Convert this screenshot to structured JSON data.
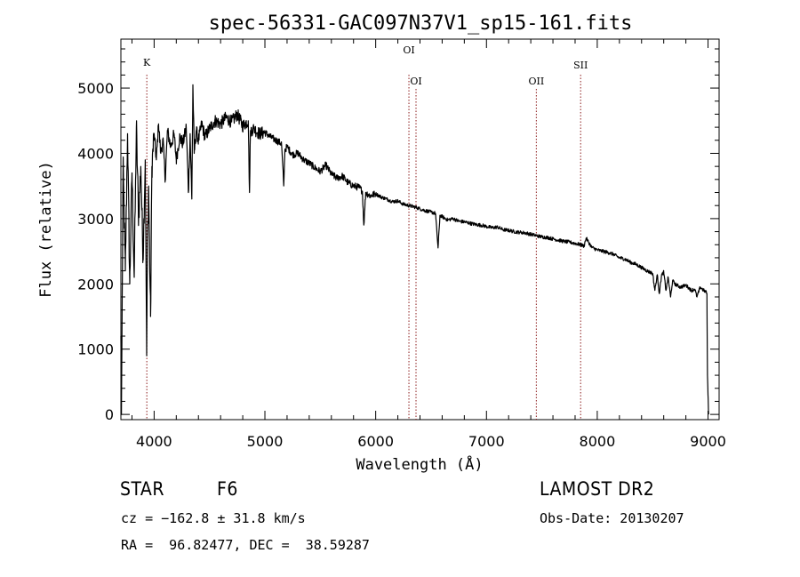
{
  "chart_data": {
    "type": "line",
    "title": "spec-56331-GAC097N37V1_sp15-161.fits",
    "xlabel": "Wavelength (Å)",
    "ylabel": "Flux (relative)",
    "xlim": [
      3700,
      9100
    ],
    "ylim": [
      -80,
      5750
    ],
    "x_ticks": [
      4000,
      5000,
      6000,
      7000,
      8000,
      9000
    ],
    "y_ticks": [
      0,
      1000,
      2000,
      3000,
      4000,
      5000
    ],
    "grid": false,
    "series": [
      {
        "x": [
          3700,
          3705,
          3720,
          3740,
          3760,
          3780,
          3800,
          3820,
          3840,
          3860,
          3880,
          3900,
          3920,
          3933,
          3940,
          3950,
          3968,
          3980,
          4000,
          4020,
          4040,
          4060,
          4080,
          4101,
          4120,
          4150,
          4180,
          4200,
          4230,
          4260,
          4290,
          4310,
          4325,
          4340,
          4350,
          4362,
          4380,
          4400,
          4430,
          4460,
          4500,
          4550,
          4600,
          4650,
          4700,
          4750,
          4800,
          4850,
          4861,
          4870,
          4900,
          4950,
          5000,
          5050,
          5100,
          5150,
          5170,
          5180,
          5200,
          5250,
          5300,
          5350,
          5400,
          5450,
          5500,
          5550,
          5600,
          5650,
          5700,
          5750,
          5800,
          5850,
          5880,
          5893,
          5910,
          5950,
          6000,
          6050,
          6100,
          6150,
          6200,
          6250,
          6300,
          6350,
          6400,
          6450,
          6500,
          6540,
          6563,
          6580,
          6600,
          6650,
          6700,
          6750,
          6800,
          6850,
          6900,
          6950,
          7000,
          7050,
          7100,
          7150,
          7200,
          7250,
          7300,
          7350,
          7400,
          7450,
          7500,
          7550,
          7600,
          7650,
          7700,
          7750,
          7800,
          7850,
          7880,
          7900,
          7950,
          8000,
          8050,
          8100,
          8150,
          8200,
          8250,
          8300,
          8350,
          8400,
          8450,
          8500,
          8520,
          8542,
          8560,
          8580,
          8600,
          8620,
          8640,
          8662,
          8680,
          8700,
          8750,
          8800,
          8850,
          8880,
          8900,
          8930,
          8960,
          8980,
          8990,
          8995,
          9000,
          9005
        ],
        "y": [
          1200,
          0,
          3800,
          2200,
          4300,
          2000,
          3700,
          2100,
          4400,
          3000,
          3800,
          2400,
          3900,
          900,
          2600,
          3500,
          1500,
          3800,
          4300,
          3900,
          4450,
          4000,
          4200,
          3600,
          4350,
          4100,
          4300,
          3900,
          4250,
          4150,
          4400,
          3400,
          4300,
          3300,
          5050,
          4000,
          4350,
          4200,
          4450,
          4250,
          4380,
          4500,
          4450,
          4550,
          4480,
          4600,
          4420,
          4500,
          3400,
          4350,
          4380,
          4300,
          4320,
          4250,
          4200,
          4150,
          3500,
          4050,
          4100,
          3980,
          4000,
          3900,
          3850,
          3780,
          3720,
          3820,
          3680,
          3620,
          3650,
          3550,
          3500,
          3480,
          3420,
          2900,
          3400,
          3350,
          3380,
          3330,
          3300,
          3260,
          3270,
          3220,
          3200,
          3180,
          3150,
          3120,
          3100,
          3080,
          2550,
          3050,
          3030,
          2980,
          3000,
          2960,
          2950,
          2930,
          2910,
          2900,
          2880,
          2860,
          2870,
          2830,
          2820,
          2800,
          2790,
          2780,
          2760,
          2740,
          2720,
          2710,
          2690,
          2670,
          2650,
          2640,
          2620,
          2600,
          2580,
          2700,
          2560,
          2520,
          2500,
          2480,
          2450,
          2400,
          2380,
          2330,
          2300,
          2250,
          2200,
          2160,
          1900,
          2140,
          1850,
          2130,
          2180,
          1900,
          2100,
          1800,
          2050,
          2000,
          1950,
          1980,
          1900,
          1920,
          1800,
          1950,
          1900,
          1880,
          1850,
          600,
          300,
          0
        ]
      }
    ],
    "line_markers": [
      {
        "label": "K",
        "wavelength": 3934
      },
      {
        "label": "OI",
        "wavelength": 6300
      },
      {
        "label": "OI",
        "wavelength": 6364
      },
      {
        "label": "OII",
        "wavelength": 7450
      },
      {
        "label": "SII",
        "wavelength": 7850
      }
    ],
    "line_color": "#000000",
    "marker_color": "#8b1a1a"
  },
  "info": {
    "class": "STAR",
    "subclass": "F6",
    "survey": "LAMOST DR2",
    "cz": "cz = −162.8 ± 31.8 km/s",
    "obs_date": "Obs-Date: 20130207",
    "coords": "RA =  96.82477, DEC =  38.59287"
  }
}
